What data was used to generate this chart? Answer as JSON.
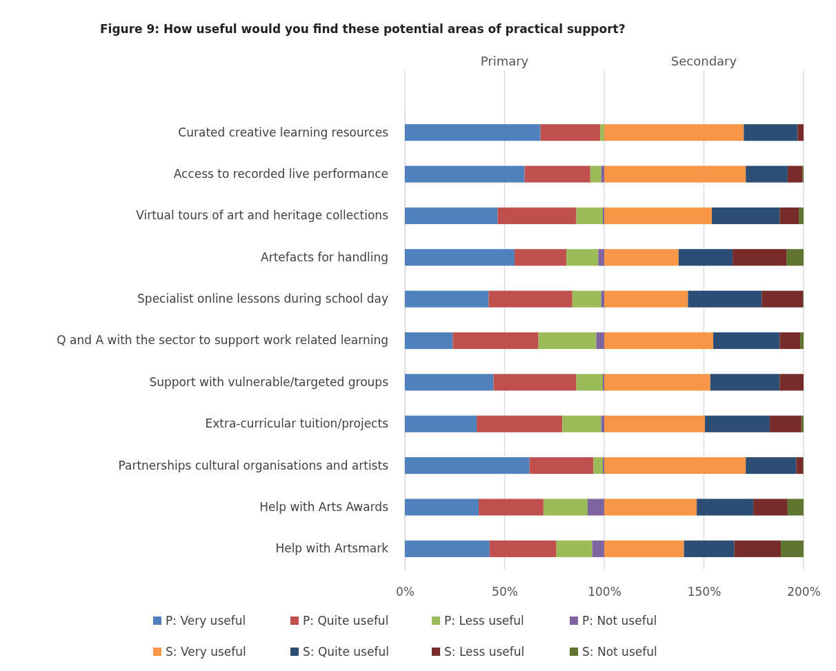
{
  "chart_data": {
    "type": "bar",
    "title": "Figure 9: How useful would you find these potential areas of practical support?",
    "orientation": "horizontal",
    "stacked": true,
    "grid": "x",
    "legend": "bottom",
    "categories": [
      "Curated creative learning resources",
      "Access to recorded live performance",
      "Virtual tours of art and heritage collections",
      "Artefacts for handling",
      "Specialist online lessons during school day",
      "Q and A with the sector to support work related learning",
      "Support with vulnerable/targeted groups",
      "Extra-curricular tuition/projects",
      "Partnerships cultural organisations and artists",
      "Help with Arts Awards",
      "Help with Artsmark"
    ],
    "xlim": [
      0,
      200
    ],
    "xticks": [
      {
        "value": 0,
        "label": "0%"
      },
      {
        "value": 50,
        "label": "50%"
      },
      {
        "value": 100,
        "label": "100%"
      },
      {
        "value": 150,
        "label": "150%"
      },
      {
        "value": 200,
        "label": "200%"
      }
    ],
    "annotations": [
      "Primary",
      "Secondary"
    ],
    "series": [
      {
        "name": "P: Very useful",
        "color": "#4f81bd",
        "values": [
          68,
          60,
          46.5,
          55,
          42,
          24,
          44.5,
          36,
          62.5,
          37,
          42.5
        ]
      },
      {
        "name": "P: Quite useful",
        "color": "#c0504d",
        "values": [
          30,
          33,
          39.5,
          26,
          42,
          43,
          41.5,
          43,
          32,
          32.5,
          33.5
        ]
      },
      {
        "name": "P: Less useful",
        "color": "#9bbb59",
        "values": [
          2,
          5.5,
          13.3,
          16,
          14.5,
          29,
          13.3,
          19.5,
          4.8,
          22.2,
          18
        ]
      },
      {
        "name": "P: Not useful",
        "color": "#8064a2",
        "values": [
          0,
          1.5,
          0.7,
          3,
          1.5,
          4,
          0.7,
          1.5,
          0.7,
          8.3,
          6
        ]
      },
      {
        "name": "S: Very useful",
        "color": "#f79646",
        "values": [
          70,
          71,
          54,
          37.3,
          42,
          54.7,
          53.2,
          50.5,
          71,
          46.4,
          40
        ]
      },
      {
        "name": "S: Quite useful",
        "color": "#2c4d75",
        "values": [
          27,
          21,
          34,
          27.1,
          37,
          33.3,
          34.8,
          32.5,
          25.3,
          28.4,
          25.2
        ]
      },
      {
        "name": "S: Less useful",
        "color": "#772c2a",
        "values": [
          3,
          7.5,
          9.6,
          27,
          20.8,
          10.3,
          12,
          15.9,
          3.5,
          17.2,
          23.4
        ]
      },
      {
        "name": "S: Not useful",
        "color": "#5f7530",
        "values": [
          0,
          0.5,
          2.4,
          8.6,
          0.2,
          1.7,
          0,
          1.1,
          0.2,
          8,
          11.4
        ]
      }
    ]
  }
}
